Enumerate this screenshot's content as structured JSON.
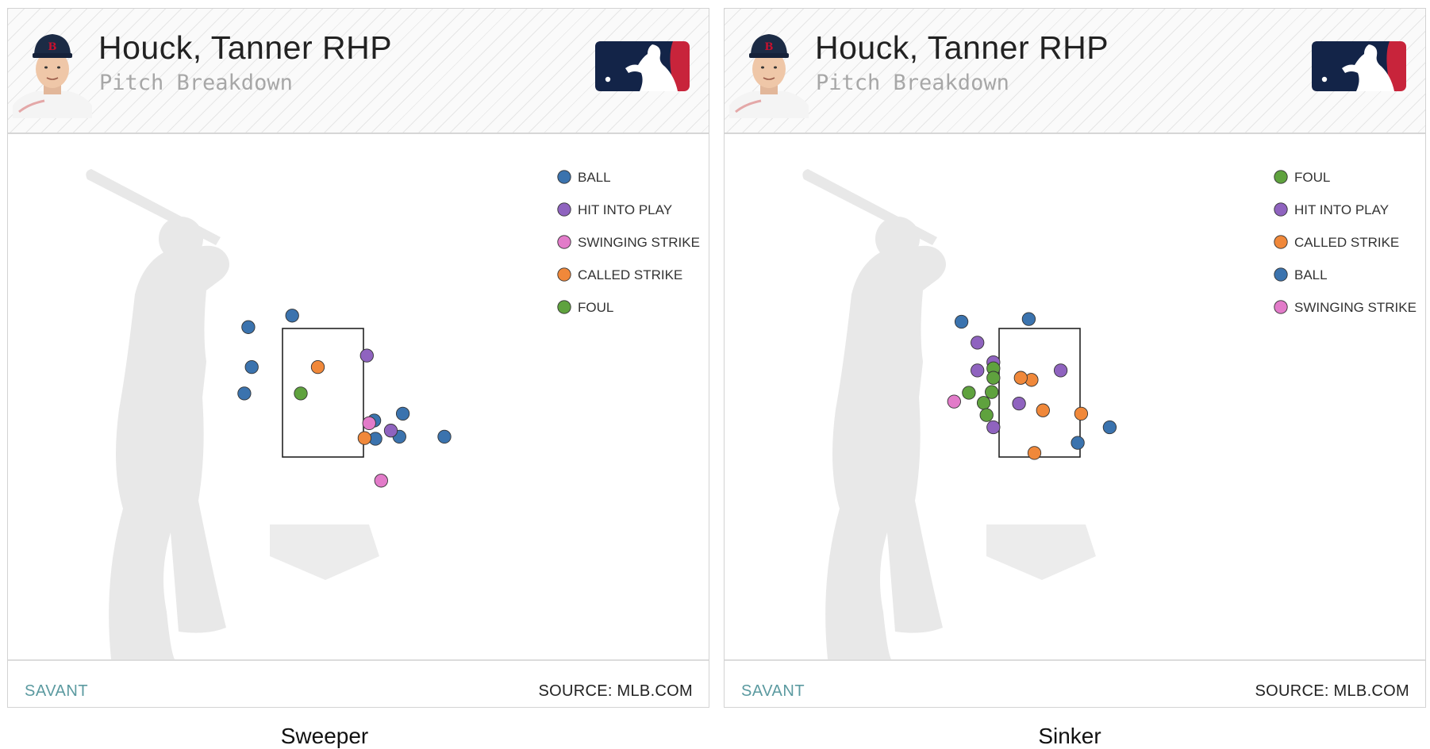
{
  "panels": [
    {
      "name": "Houck, Tanner RHP",
      "subtitle": "Pitch Breakdown",
      "footer_left": "SAVANT",
      "footer_right": "SOURCE: MLB.COM",
      "caption": "Sweeper"
    },
    {
      "name": "Houck, Tanner RHP",
      "subtitle": "Pitch Breakdown",
      "footer_left": "SAVANT",
      "footer_right": "SOURCE: MLB.COM",
      "caption": "Sinker"
    }
  ],
  "colors": {
    "BALL": "#3b73ae",
    "HIT INTO PLAY": "#8f63bf",
    "SWINGING STRIKE": "#e27bc9",
    "CALLED STRIKE": "#f0883a",
    "FOUL": "#5fa23e"
  },
  "chart_data": [
    {
      "type": "scatter",
      "title": "Sweeper",
      "xlabel": "",
      "ylabel": "",
      "xlim": [
        -2.5,
        3.0
      ],
      "ylim": [
        0.5,
        4.5
      ],
      "legend_position": "top-right",
      "legend": [
        "BALL",
        "HIT INTO PLAY",
        "SWINGING STRIKE",
        "CALLED STRIKE",
        "FOUL"
      ],
      "strike_zone": {
        "x": [
          -0.71,
          0.71
        ],
        "y": [
          1.6,
          3.5
        ]
      },
      "points": [
        {
          "x": -1.31,
          "y": 3.52,
          "result": "BALL"
        },
        {
          "x": -0.54,
          "y": 3.69,
          "result": "BALL"
        },
        {
          "x": -1.25,
          "y": 2.93,
          "result": "BALL"
        },
        {
          "x": -1.38,
          "y": 2.54,
          "result": "BALL"
        },
        {
          "x": 0.9,
          "y": 2.14,
          "result": "BALL"
        },
        {
          "x": 1.4,
          "y": 2.24,
          "result": "BALL"
        },
        {
          "x": 0.92,
          "y": 1.87,
          "result": "BALL"
        },
        {
          "x": 1.34,
          "y": 1.9,
          "result": "BALL"
        },
        {
          "x": 2.13,
          "y": 1.9,
          "result": "BALL"
        },
        {
          "x": 0.77,
          "y": 3.1,
          "result": "HIT INTO PLAY"
        },
        {
          "x": 1.19,
          "y": 1.99,
          "result": "HIT INTO PLAY"
        },
        {
          "x": 0.81,
          "y": 2.1,
          "result": "SWINGING STRIKE"
        },
        {
          "x": 1.02,
          "y": 1.25,
          "result": "SWINGING STRIKE"
        },
        {
          "x": -0.09,
          "y": 2.93,
          "result": "CALLED STRIKE"
        },
        {
          "x": 0.73,
          "y": 1.88,
          "result": "CALLED STRIKE"
        },
        {
          "x": -0.39,
          "y": 2.54,
          "result": "FOUL"
        }
      ]
    },
    {
      "type": "scatter",
      "title": "Sinker",
      "xlabel": "",
      "ylabel": "",
      "xlim": [
        -2.5,
        3.0
      ],
      "ylim": [
        0.5,
        4.5
      ],
      "legend_position": "top-right",
      "legend": [
        "FOUL",
        "HIT INTO PLAY",
        "CALLED STRIKE",
        "BALL",
        "SWINGING STRIKE"
      ],
      "strike_zone": {
        "x": [
          -0.71,
          0.71
        ],
        "y": [
          1.6,
          3.5
        ]
      },
      "points": [
        {
          "x": -1.37,
          "y": 3.6,
          "result": "BALL"
        },
        {
          "x": -0.19,
          "y": 3.64,
          "result": "BALL"
        },
        {
          "x": 0.67,
          "y": 1.81,
          "result": "BALL"
        },
        {
          "x": 1.23,
          "y": 2.04,
          "result": "BALL"
        },
        {
          "x": -1.09,
          "y": 3.29,
          "result": "HIT INTO PLAY"
        },
        {
          "x": -1.09,
          "y": 2.88,
          "result": "HIT INTO PLAY"
        },
        {
          "x": -0.81,
          "y": 3.0,
          "result": "HIT INTO PLAY"
        },
        {
          "x": 0.37,
          "y": 2.88,
          "result": "HIT INTO PLAY"
        },
        {
          "x": -0.36,
          "y": 2.39,
          "result": "HIT INTO PLAY"
        },
        {
          "x": -0.81,
          "y": 2.04,
          "result": "HIT INTO PLAY"
        },
        {
          "x": -0.81,
          "y": 2.91,
          "result": "FOUL"
        },
        {
          "x": -0.81,
          "y": 2.77,
          "result": "FOUL"
        },
        {
          "x": -0.84,
          "y": 2.56,
          "result": "FOUL"
        },
        {
          "x": -1.24,
          "y": 2.55,
          "result": "FOUL"
        },
        {
          "x": -0.98,
          "y": 2.4,
          "result": "FOUL"
        },
        {
          "x": -0.93,
          "y": 2.22,
          "result": "FOUL"
        },
        {
          "x": -0.14,
          "y": 2.74,
          "result": "CALLED STRIKE"
        },
        {
          "x": -0.33,
          "y": 2.77,
          "result": "CALLED STRIKE"
        },
        {
          "x": 0.06,
          "y": 2.29,
          "result": "CALLED STRIKE"
        },
        {
          "x": 0.73,
          "y": 2.24,
          "result": "CALLED STRIKE"
        },
        {
          "x": -0.09,
          "y": 1.66,
          "result": "CALLED STRIKE"
        },
        {
          "x": -1.5,
          "y": 2.42,
          "result": "SWINGING STRIKE"
        }
      ]
    }
  ]
}
